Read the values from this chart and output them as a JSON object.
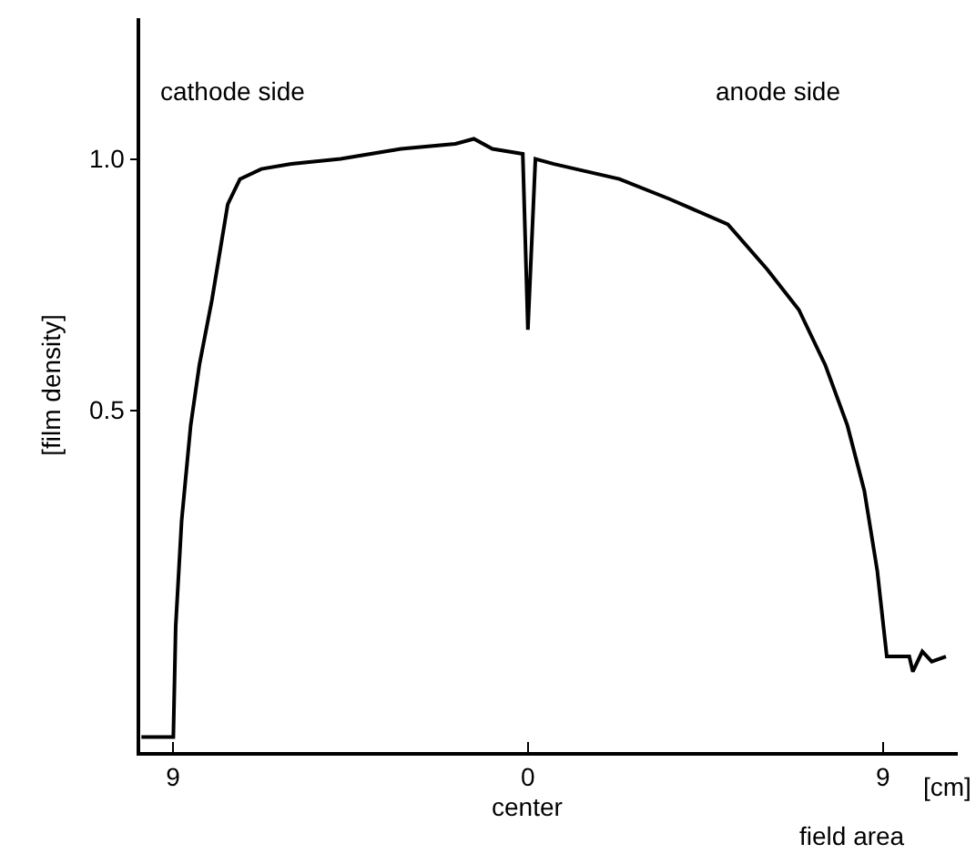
{
  "chart_data": {
    "type": "line",
    "xlabel": "[cm]",
    "ylabel": "[film density]",
    "annotations": [
      "cathode side",
      "anode side",
      "center",
      "field area"
    ],
    "x": [
      -9.8,
      -8.99,
      -8.93,
      -8.78,
      -8.55,
      -8.33,
      -8.01,
      -7.61,
      -7.3,
      -6.76,
      -6.0,
      -4.75,
      -3.22,
      -1.84,
      -1.37,
      -0.9,
      -0.13,
      0,
      0.19,
      0.66,
      2.32,
      3.6,
      5.07,
      6.07,
      6.87,
      7.54,
      8.1,
      8.53,
      8.86,
      9.1,
      9.67,
      9.76,
      10.0,
      10.24,
      10.6
    ],
    "series": [
      {
        "color": "#000000",
        "values": [
          -0.15,
          -0.15,
          0.07,
          0.28,
          0.47,
          0.59,
          0.72,
          0.91,
          0.96,
          0.98,
          0.99,
          1.0,
          1.02,
          1.03,
          1.04,
          1.02,
          1.01,
          0.66,
          1.0,
          0.99,
          0.96,
          0.92,
          0.87,
          0.78,
          0.7,
          0.59,
          0.47,
          0.34,
          0.18,
          0.01,
          0.01,
          -0.02,
          0.02,
          0.0,
          0.01
        ]
      }
    ],
    "xlim": [
      -9.83,
      10.9
    ],
    "ylim": [
      -0.18,
      1.28
    ],
    "xticks": [
      {
        "value": -9,
        "label": "9"
      },
      0,
      9
    ],
    "yticks": [
      0.5,
      {
        "value": 1,
        "label": "1.0"
      }
    ],
    "grid": false,
    "legend": false,
    "marker": "none",
    "line_style": "solid"
  }
}
